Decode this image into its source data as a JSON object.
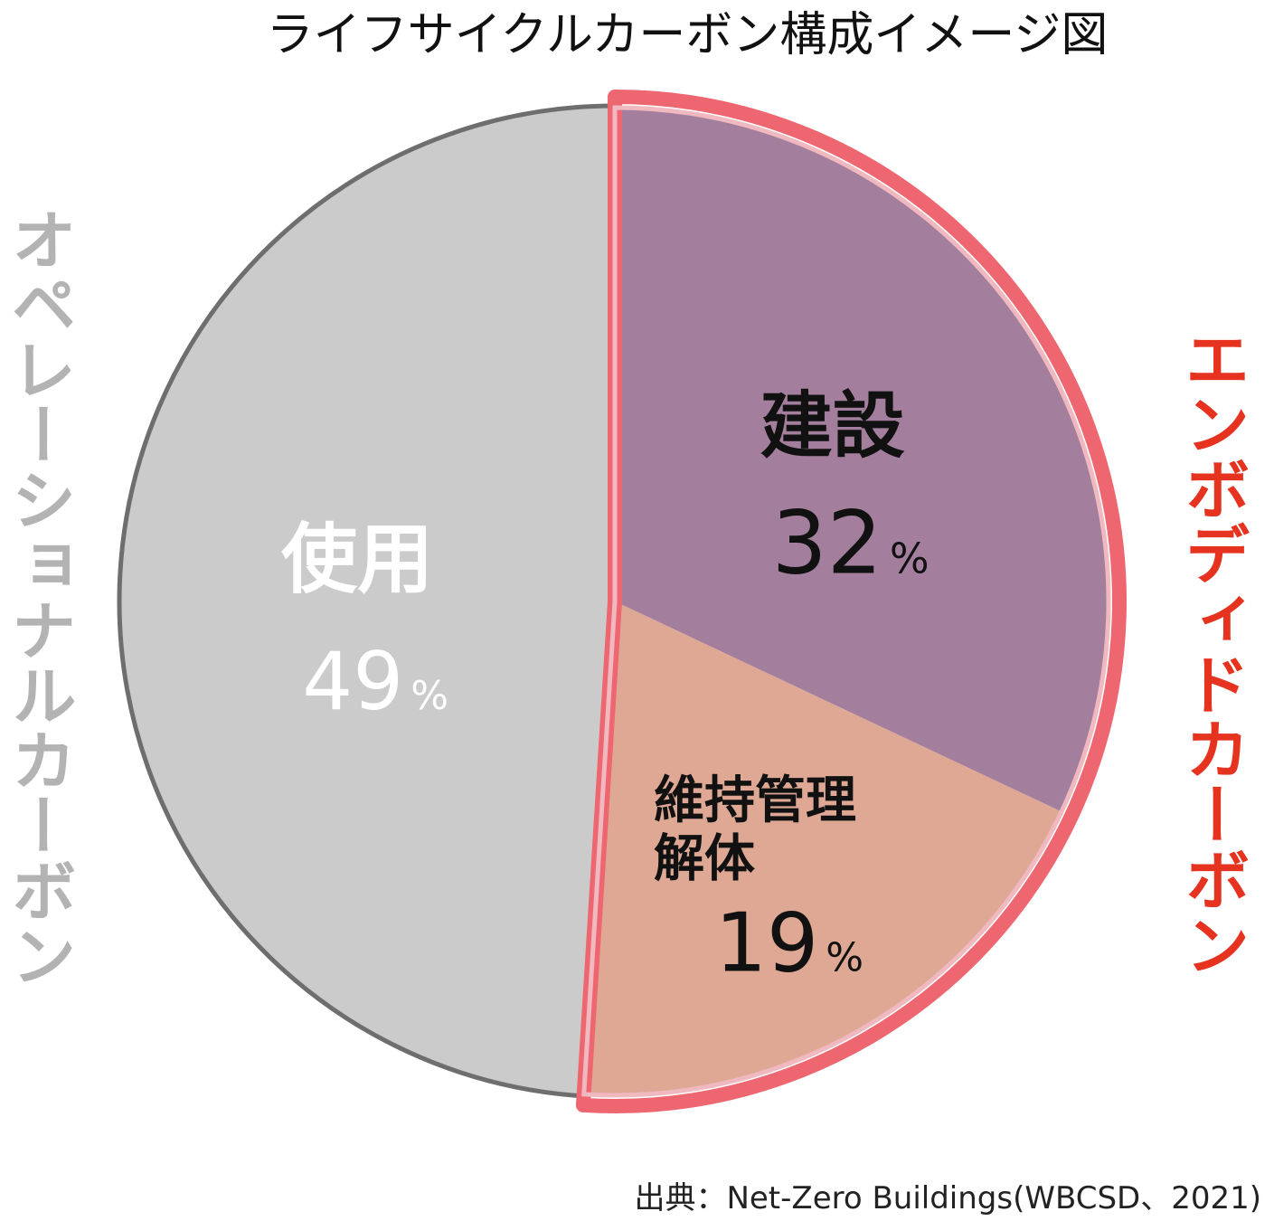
{
  "title": "ライフサイクルカーボン構成イメージ図",
  "source": "出典：Net-Zero Buildings(WBCSD、2021)",
  "groups": {
    "operational": {
      "label": "オペレーショナルカーボン",
      "color": "#b3b3b3"
    },
    "embodied": {
      "label": "エンボディドカーボン",
      "color": "#e6331f",
      "highlight_color": "#ee6670"
    }
  },
  "chart_data": {
    "type": "pie",
    "title": "ライフサイクルカーボン構成イメージ図",
    "start": "12 o'clock",
    "direction": "clockwise",
    "slices": [
      {
        "key": "construction",
        "label": "建設",
        "value": 32,
        "value_label": "32",
        "unit": "%",
        "color": "#a47f9d",
        "text_color": "#111111",
        "group": "embodied"
      },
      {
        "key": "maintenance",
        "label": "維持管理 解体",
        "label_lines": [
          "維持管理",
          "解体"
        ],
        "value": 19,
        "value_label": "19",
        "unit": "%",
        "color": "#dea894",
        "text_color": "#111111",
        "group": "embodied"
      },
      {
        "key": "use",
        "label": "使用",
        "value": 49,
        "value_label": "49",
        "unit": "%",
        "color": "#cbcbcb",
        "text_color": "#ffffff",
        "group": "operational"
      }
    ]
  }
}
